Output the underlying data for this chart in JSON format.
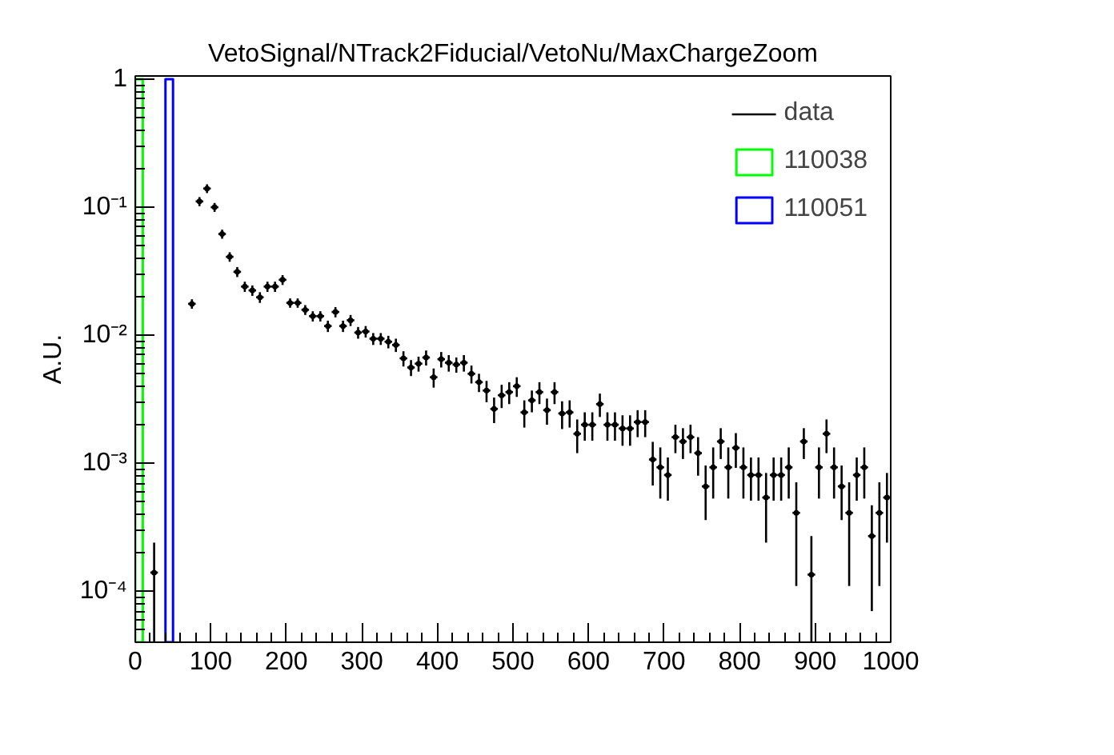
{
  "chart_data": {
    "type": "scatter",
    "title": "VetoSignal/NTrack2Fiducial/VetoNu/MaxChargeZoom",
    "ylabel": "A.U.",
    "log": "y",
    "grid": false,
    "legend": "top right",
    "marker": "circle",
    "xlim": [
      0,
      1000
    ],
    "xticks": [
      0,
      100,
      200,
      300,
      400,
      500,
      600,
      700,
      800,
      900,
      1000
    ],
    "ylim": [
      4e-05,
      1.06
    ],
    "yticks": [
      {
        "value": 0.0001,
        "label": "10⁻⁴"
      },
      {
        "value": 0.001,
        "label": "10⁻³"
      },
      {
        "value": 0.01,
        "label": "10⁻²"
      },
      {
        "value": 0.1,
        "label": "10⁻¹"
      },
      {
        "value": 1,
        "label": "1"
      }
    ],
    "series": [
      {
        "name": "data",
        "color": "#000000",
        "x": [
          25,
          75,
          85,
          95,
          105,
          115,
          125,
          135,
          145,
          155,
          165,
          175,
          185,
          195,
          205,
          215,
          225,
          235,
          245,
          255,
          265,
          275,
          285,
          295,
          305,
          315,
          325,
          335,
          345,
          355,
          365,
          375,
          385,
          395,
          405,
          415,
          425,
          435,
          445,
          455,
          465,
          475,
          485,
          495,
          505,
          515,
          525,
          535,
          545,
          555,
          565,
          575,
          585,
          595,
          605,
          615,
          625,
          635,
          645,
          655,
          665,
          675,
          685,
          695,
          705,
          715,
          725,
          735,
          745,
          755,
          765,
          775,
          785,
          795,
          805,
          815,
          825,
          835,
          845,
          855,
          865,
          875,
          885,
          895,
          905,
          915,
          925,
          935,
          945,
          955,
          965,
          975,
          985,
          995
        ],
        "values": [
          0.00014,
          0.0176,
          0.111,
          0.14,
          0.1,
          0.0618,
          0.041,
          0.0313,
          0.024,
          0.0224,
          0.0198,
          0.024,
          0.024,
          0.0271,
          0.0179,
          0.0179,
          0.0158,
          0.0141,
          0.0141,
          0.0118,
          0.0152,
          0.0118,
          0.0131,
          0.0105,
          0.0107,
          0.0094,
          0.0094,
          0.0089,
          0.0084,
          0.0066,
          0.0056,
          0.006,
          0.0067,
          0.0047,
          0.0065,
          0.0061,
          0.0059,
          0.0061,
          0.005,
          0.0043,
          0.0037,
          0.00266,
          0.0034,
          0.0036,
          0.004,
          0.0025,
          0.0031,
          0.0036,
          0.0026,
          0.0036,
          0.00245,
          0.0025,
          0.0017,
          0.002,
          0.002,
          0.0029,
          0.002,
          0.002,
          0.00187,
          0.00187,
          0.0021,
          0.0021,
          0.00107,
          0.00093,
          0.00081,
          0.0016,
          0.00148,
          0.0016,
          0.0012,
          0.00066,
          0.00093,
          0.00148,
          0.00093,
          0.00132,
          0.00093,
          0.00081,
          0.00081,
          0.00054,
          0.00081,
          0.00081,
          0.00093,
          0.00041,
          0.00148,
          0.000135,
          0.00093,
          0.0017,
          0.00093,
          0.00066,
          0.00041,
          0.00081,
          0.00093,
          0.00027,
          0.00041,
          0.00054
        ],
        "errors": [
          0.0001,
          0.0015,
          0.009,
          0.011,
          0.008,
          0.005,
          0.0035,
          0.0028,
          0.0022,
          0.0021,
          0.0019,
          0.0022,
          0.0022,
          0.0024,
          0.0015,
          0.0015,
          0.0014,
          0.0013,
          0.0013,
          0.0012,
          0.0014,
          0.0012,
          0.0013,
          0.0011,
          0.0011,
          0.001,
          0.001,
          0.001,
          0.001,
          0.0009,
          0.0008,
          0.0008,
          0.0009,
          0.0008,
          0.0009,
          0.0009,
          0.0008,
          0.0009,
          0.0008,
          0.0007,
          0.0007,
          0.0006,
          0.0007,
          0.0007,
          0.0007,
          0.0006,
          0.0006,
          0.0007,
          0.0006,
          0.0007,
          0.0006,
          0.0006,
          0.0005,
          0.0005,
          0.0005,
          0.0006,
          0.0005,
          0.0005,
          0.0005,
          0.0005,
          0.0005,
          0.0005,
          0.0004,
          0.0004,
          0.0003,
          0.0004,
          0.0004,
          0.0004,
          0.0004,
          0.0003,
          0.0004,
          0.0004,
          0.0004,
          0.0004,
          0.0004,
          0.0003,
          0.0003,
          0.0003,
          0.0003,
          0.0003,
          0.0004,
          0.0003,
          0.0004,
          [
            4e-05,
            0.00027
          ],
          0.0004,
          0.0005,
          0.0004,
          0.0003,
          0.0003,
          0.0003,
          0.0004,
          0.0002,
          0.0003,
          0.0003
        ],
        "xerrors": [
          5,
          5,
          5,
          5,
          5,
          5,
          5,
          5,
          5,
          5,
          5,
          5,
          5,
          5,
          5,
          5,
          5,
          5,
          5,
          5,
          5,
          5,
          5,
          5,
          5,
          5,
          5,
          5,
          5,
          5,
          5,
          5,
          5,
          5,
          5,
          5,
          5,
          5,
          5,
          5,
          5,
          5,
          5,
          5,
          5,
          5,
          5,
          5,
          5,
          5,
          5,
          5,
          5,
          5,
          5,
          5,
          5,
          5,
          5,
          5,
          5,
          5,
          5,
          5,
          5,
          5,
          5,
          5,
          5,
          5,
          5,
          5,
          5,
          5,
          5,
          5,
          5,
          5,
          5,
          5,
          5,
          5,
          5,
          5,
          5,
          5,
          5,
          5,
          5,
          5,
          5,
          5,
          5,
          5
        ]
      },
      {
        "name": "110038",
        "color": "#00ff00",
        "type": "histogram",
        "bins": [
          0,
          10
        ],
        "values": [
          1
        ]
      },
      {
        "name": "110051",
        "color": "#0000ff",
        "type": "histogram",
        "bins": [
          40,
          50
        ],
        "values": [
          1
        ]
      }
    ]
  }
}
